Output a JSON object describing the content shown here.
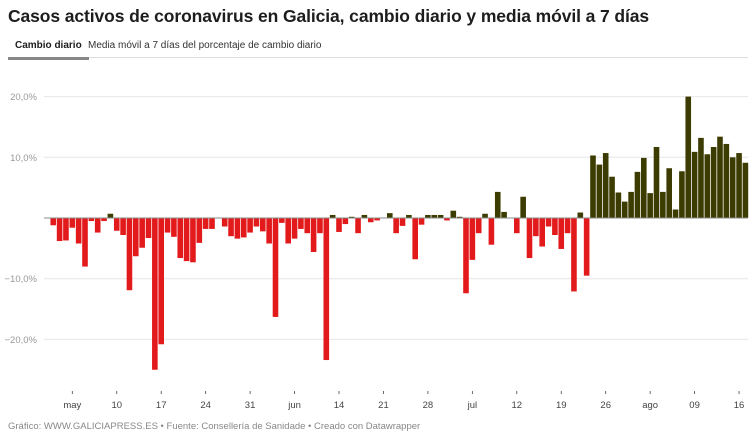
{
  "header": {
    "title": "Casos activos de coronavirus en Galicia, cambio diario y media móvil a 7 días"
  },
  "tabs": [
    {
      "label": "Cambio diario",
      "active": true
    },
    {
      "label": "Media móvil a 7 días del porcentaje de cambio diario",
      "active": false
    }
  ],
  "footer": {
    "text": "Gráfico: WWW.GALICIAPRESS.ES • Fuente: Consellería de Sanidade • Creado con Datawrapper"
  },
  "chart_data": {
    "type": "bar",
    "title": "",
    "xlabel": "",
    "ylabel": "",
    "ylim": [
      -27,
      21
    ],
    "grid": true,
    "colors": {
      "positive": "#3d3c00",
      "negative": "#e31a1c"
    },
    "y_ticks": [
      {
        "value": 20,
        "label": "20,0%"
      },
      {
        "value": 10,
        "label": "10,0%"
      },
      {
        "value": 0,
        "label": ""
      },
      {
        "value": -10,
        "label": "−10,0%"
      },
      {
        "value": -20,
        "label": "−20,0%"
      }
    ],
    "x_ticks": [
      {
        "date": "05-03",
        "label": "may"
      },
      {
        "date": "05-10",
        "label": "10"
      },
      {
        "date": "05-17",
        "label": "17"
      },
      {
        "date": "05-24",
        "label": "24"
      },
      {
        "date": "05-31",
        "label": "31"
      },
      {
        "date": "06-07",
        "label": "jun"
      },
      {
        "date": "06-14",
        "label": "14"
      },
      {
        "date": "06-21",
        "label": "21"
      },
      {
        "date": "06-28",
        "label": "28"
      },
      {
        "date": "07-05",
        "label": "jul"
      },
      {
        "date": "07-12",
        "label": "12"
      },
      {
        "date": "07-19",
        "label": "19"
      },
      {
        "date": "07-26",
        "label": "26"
      },
      {
        "date": "08-02",
        "label": "ago"
      },
      {
        "date": "08-09",
        "label": "09"
      },
      {
        "date": "08-16",
        "label": "16"
      }
    ],
    "x": [
      "04-30",
      "05-01",
      "05-02",
      "05-03",
      "05-04",
      "05-05",
      "05-06",
      "05-07",
      "05-08",
      "05-09",
      "05-10",
      "05-11",
      "05-12",
      "05-13",
      "05-14",
      "05-15",
      "05-16",
      "05-17",
      "05-18",
      "05-19",
      "05-20",
      "05-21",
      "05-22",
      "05-23",
      "05-24",
      "05-25",
      "05-26",
      "05-27",
      "05-28",
      "05-29",
      "05-30",
      "05-31",
      "06-01",
      "06-02",
      "06-03",
      "06-04",
      "06-05",
      "06-06",
      "06-07",
      "06-08",
      "06-09",
      "06-10",
      "06-11",
      "06-12",
      "06-13",
      "06-14",
      "06-15",
      "06-16",
      "06-17",
      "06-18",
      "06-19",
      "06-20",
      "06-21",
      "06-22",
      "06-23",
      "06-24",
      "06-25",
      "06-26",
      "06-27",
      "06-28",
      "06-29",
      "06-30",
      "07-01",
      "07-02",
      "07-03",
      "07-04",
      "07-05",
      "07-06",
      "07-07",
      "07-08",
      "07-09",
      "07-10",
      "07-11",
      "07-12",
      "07-13",
      "07-14",
      "07-15",
      "07-16",
      "07-17",
      "07-18",
      "07-19",
      "07-20",
      "07-21",
      "07-22",
      "07-23",
      "07-24",
      "07-25",
      "07-26",
      "07-27",
      "07-28",
      "07-29",
      "07-30",
      "07-31",
      "08-01",
      "08-02",
      "08-03",
      "08-04",
      "08-05",
      "08-06",
      "08-07",
      "08-08",
      "08-09",
      "08-10",
      "08-11",
      "08-12",
      "08-13",
      "08-14",
      "08-15",
      "08-16",
      "08-17"
    ],
    "values": [
      -1.2,
      -3.8,
      -3.7,
      -1.6,
      -4.2,
      -8.0,
      -0.5,
      -2.4,
      -0.5,
      0.7,
      -2.1,
      -2.8,
      -11.9,
      -6.3,
      -4.9,
      -3.3,
      -25.0,
      -20.8,
      -2.4,
      -3.1,
      -6.6,
      -7.1,
      -7.3,
      -4.1,
      -1.8,
      -1.8,
      0,
      -1.4,
      -3.0,
      -3.4,
      -3.2,
      -2.4,
      -1.4,
      -2.2,
      -4.2,
      -16.3,
      -0.8,
      -4.2,
      -3.4,
      -1.8,
      -2.5,
      -5.6,
      -2.5,
      -23.4,
      0.5,
      -2.3,
      -1.0,
      0.2,
      -2.5,
      0.5,
      -0.7,
      -0.4,
      0,
      0.8,
      -2.5,
      -1.3,
      0.5,
      -6.8,
      -1.1,
      0.5,
      0.5,
      0.5,
      -0.4,
      1.2,
      0.2,
      -12.4,
      -6.9,
      -2.5,
      0.7,
      -4.4,
      4.3,
      1.0,
      0,
      -2.5,
      3.5,
      -6.6,
      -3.0,
      -4.7,
      -1.4,
      -2.8,
      -5.1,
      -2.5,
      -12.1,
      0.9,
      -9.5,
      10.3,
      8.8,
      10.7,
      6.8,
      4.2,
      2.7,
      4.3,
      7.6,
      9.9,
      4.1,
      11.7,
      4.3,
      8.2,
      1.4,
      7.7,
      20.0,
      10.9,
      13.2,
      10.5,
      11.7,
      13.4,
      12.2,
      10.0,
      10.7,
      9.1
    ]
  }
}
